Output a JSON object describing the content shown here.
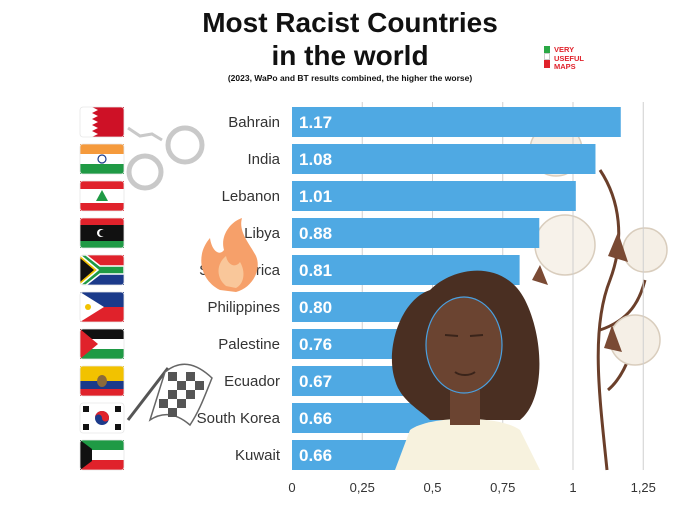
{
  "title_line1": "Most Racist Countries",
  "title_line2": "in the world",
  "subtitle": "(2023, WaPo and BT results combined, the higher the worse)",
  "brand_text": "VERY\nUSEFUL\nMAPS",
  "colors": {
    "bar": "#4fa9e3",
    "grid": "#cfcfcf",
    "brand_red": "#e0222b",
    "brand_green": "#2aa845"
  },
  "chart_data": {
    "type": "bar",
    "orientation": "horizontal",
    "title": "Most Racist Countries in the world",
    "subtitle": "(2023, WaPo and BT results combined, the higher the worse)",
    "categories": [
      "Bahrain",
      "India",
      "Lebanon",
      "Libya",
      "South Africa",
      "Philippines",
      "Palestine",
      "Ecuador",
      "South Korea",
      "Kuwait"
    ],
    "values": [
      1.17,
      1.08,
      1.01,
      0.88,
      0.81,
      0.8,
      0.76,
      0.67,
      0.66,
      0.66
    ],
    "value_labels": [
      "1.17",
      "1.08",
      "1.01",
      "0.88",
      "0.81",
      "0.80",
      "0.76",
      "0.67",
      "0.66",
      "0.66"
    ],
    "xlim": [
      0,
      1.25
    ],
    "xticks": [
      0,
      0.25,
      0.5,
      0.75,
      1,
      1.25
    ],
    "xtick_labels": [
      "0",
      "0,25",
      "0,5",
      "0,75",
      "1",
      "1,25"
    ],
    "grid": true,
    "legend": "none",
    "flags": [
      "bahrain",
      "india",
      "lebanon",
      "libya",
      "south-africa",
      "philippines",
      "palestine",
      "ecuador",
      "south-korea",
      "kuwait"
    ]
  }
}
